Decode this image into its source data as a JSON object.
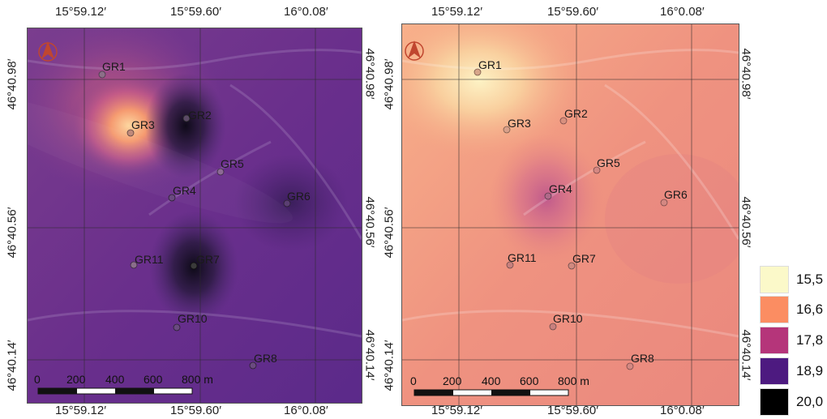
{
  "maps": [
    {
      "id": "left",
      "theme": "dark-purple",
      "top_coords": [
        "15°59.12′",
        "15°59.60′",
        "16°0.08′"
      ],
      "bottom_coords": [
        "15°59.12′",
        "15°59.60′",
        "16°0.08′"
      ],
      "left_coords": [
        "46°40.98′",
        "46°40.56′",
        "46°40.14′"
      ],
      "right_coords": [
        "46°40.98′",
        "46°40.56′",
        "46°40.14′"
      ],
      "stations": [
        "GR1",
        "GR2",
        "GR3",
        "GR5",
        "GR4",
        "GR6",
        "GR11",
        "GR7",
        "GR10",
        "GR8"
      ],
      "scale_labels": [
        "0",
        "200",
        "400",
        "600",
        "800 m"
      ],
      "north_icon": "north-arrow-icon"
    },
    {
      "id": "right",
      "theme": "light-salmon",
      "top_coords": [
        "15°59.12′",
        "15°59.60′",
        "16°0.08′"
      ],
      "bottom_coords": [
        "15°59.12′",
        "15°59.60′",
        "16°0.08′"
      ],
      "left_coords": [
        "46°40.98′",
        "46°40.56′",
        "46°40.14′"
      ],
      "right_coords": [
        "46°40.98′",
        "46°40.56′",
        "46°40.14′"
      ],
      "stations": [
        "GR1",
        "GR2",
        "GR3",
        "GR5",
        "GR4",
        "GR6",
        "GR11",
        "GR7",
        "GR10",
        "GR8"
      ],
      "scale_labels": [
        "0",
        "200",
        "400",
        "600",
        "800 m"
      ],
      "north_icon": "north-arrow-icon"
    }
  ],
  "legend": [
    {
      "label": "15,5",
      "color": "#fbf9c9"
    },
    {
      "label": "16,6",
      "color": "#fb8d62"
    },
    {
      "label": "17,8",
      "color": "#b5357a"
    },
    {
      "label": "18,9",
      "color": "#4d1a80"
    },
    {
      "label": "20,0",
      "color": "#000000"
    }
  ]
}
